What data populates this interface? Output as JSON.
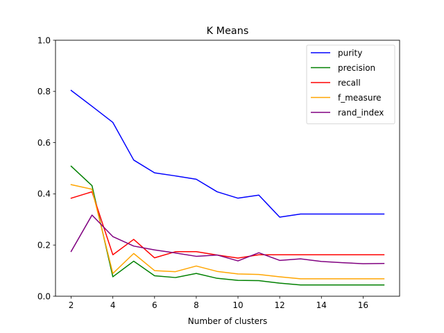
{
  "chart_data": {
    "type": "line",
    "title": "K Means",
    "xlabel": "Number of clusters",
    "ylabel": "",
    "xlim": [
      1.25,
      17.75
    ],
    "ylim": [
      0.0,
      1.0
    ],
    "xticks": [
      2,
      4,
      6,
      8,
      10,
      12,
      14,
      16
    ],
    "yticks": [
      0.0,
      0.2,
      0.4,
      0.6,
      0.8,
      1.0
    ],
    "grid": false,
    "legend": "top-right",
    "x": [
      2,
      3,
      4,
      5,
      6,
      7,
      8,
      9,
      10,
      11,
      12,
      13,
      14,
      15,
      16,
      17
    ],
    "series": [
      {
        "name": "purity",
        "color": "#0000ff",
        "values": [
          0.804,
          0.742,
          0.679,
          0.532,
          0.482,
          0.47,
          0.457,
          0.408,
          0.383,
          0.395,
          0.309,
          0.321,
          0.321,
          0.321,
          0.321,
          0.321
        ]
      },
      {
        "name": "precision",
        "color": "#008000",
        "values": [
          0.508,
          0.432,
          0.076,
          0.137,
          0.08,
          0.073,
          0.089,
          0.07,
          0.062,
          0.061,
          0.051,
          0.044,
          0.044,
          0.044,
          0.044,
          0.044
        ]
      },
      {
        "name": "recall",
        "color": "#ff0000",
        "values": [
          0.383,
          0.408,
          0.162,
          0.222,
          0.15,
          0.174,
          0.174,
          0.161,
          0.149,
          0.162,
          0.162,
          0.162,
          0.162,
          0.162,
          0.162,
          0.162
        ]
      },
      {
        "name": "f_measure",
        "color": "#ffa500",
        "values": [
          0.436,
          0.418,
          0.089,
          0.167,
          0.1,
          0.096,
          0.118,
          0.097,
          0.087,
          0.085,
          0.076,
          0.068,
          0.068,
          0.068,
          0.068,
          0.068
        ]
      },
      {
        "name": "rand_index",
        "color": "#800080",
        "values": [
          0.175,
          0.317,
          0.233,
          0.196,
          0.181,
          0.169,
          0.156,
          0.161,
          0.138,
          0.17,
          0.14,
          0.146,
          0.136,
          0.131,
          0.127,
          0.128
        ]
      }
    ]
  }
}
